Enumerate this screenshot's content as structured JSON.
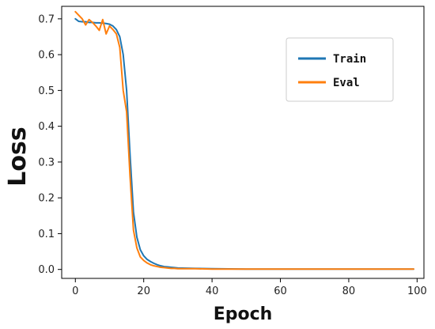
{
  "chart_data": {
    "type": "line",
    "xlabel": "Epoch",
    "ylabel": "Loss",
    "xlim": [
      -4,
      102
    ],
    "ylim": [
      -0.025,
      0.735
    ],
    "xticks": [
      0,
      20,
      40,
      60,
      80,
      100
    ],
    "yticks": [
      0.0,
      0.1,
      0.2,
      0.3,
      0.4,
      0.5,
      0.6,
      0.7
    ],
    "xtick_labels": [
      "0",
      "20",
      "40",
      "60",
      "80",
      "100"
    ],
    "ytick_labels": [
      "0.0",
      "0.1",
      "0.2",
      "0.3",
      "0.4",
      "0.5",
      "0.6",
      "0.7"
    ],
    "grid": false,
    "legend_position": "upper right",
    "series": [
      {
        "name": "Train",
        "color": "#1f77b4",
        "x": [
          0,
          1,
          2,
          3,
          4,
          5,
          6,
          7,
          8,
          9,
          10,
          11,
          12,
          13,
          14,
          15,
          16,
          17,
          18,
          19,
          20,
          21,
          22,
          23,
          24,
          25,
          26,
          27,
          28,
          29,
          30,
          35,
          40,
          50,
          60,
          70,
          80,
          90,
          99
        ],
        "y": [
          0.7,
          0.693,
          0.692,
          0.692,
          0.69,
          0.69,
          0.689,
          0.689,
          0.688,
          0.687,
          0.685,
          0.68,
          0.67,
          0.65,
          0.6,
          0.5,
          0.32,
          0.16,
          0.09,
          0.055,
          0.038,
          0.028,
          0.022,
          0.017,
          0.013,
          0.01,
          0.008,
          0.007,
          0.006,
          0.005,
          0.004,
          0.003,
          0.002,
          0.001,
          0.001,
          0.001,
          0.001,
          0.001,
          0.001
        ]
      },
      {
        "name": "Eval",
        "color": "#ff7f0e",
        "x": [
          0,
          1,
          2,
          3,
          4,
          5,
          6,
          7,
          8,
          9,
          10,
          11,
          12,
          13,
          14,
          15,
          16,
          17,
          18,
          19,
          20,
          21,
          22,
          23,
          24,
          25,
          26,
          27,
          28,
          29,
          30,
          35,
          40,
          50,
          60,
          70,
          80,
          90,
          99
        ],
        "y": [
          0.72,
          0.71,
          0.7,
          0.683,
          0.698,
          0.69,
          0.68,
          0.668,
          0.698,
          0.658,
          0.68,
          0.67,
          0.658,
          0.62,
          0.5,
          0.44,
          0.26,
          0.11,
          0.06,
          0.035,
          0.025,
          0.018,
          0.013,
          0.01,
          0.008,
          0.006,
          0.005,
          0.004,
          0.003,
          0.003,
          0.002,
          0.002,
          0.001,
          0.001,
          0.001,
          0.001,
          0.001,
          0.001,
          0.001
        ]
      }
    ]
  }
}
